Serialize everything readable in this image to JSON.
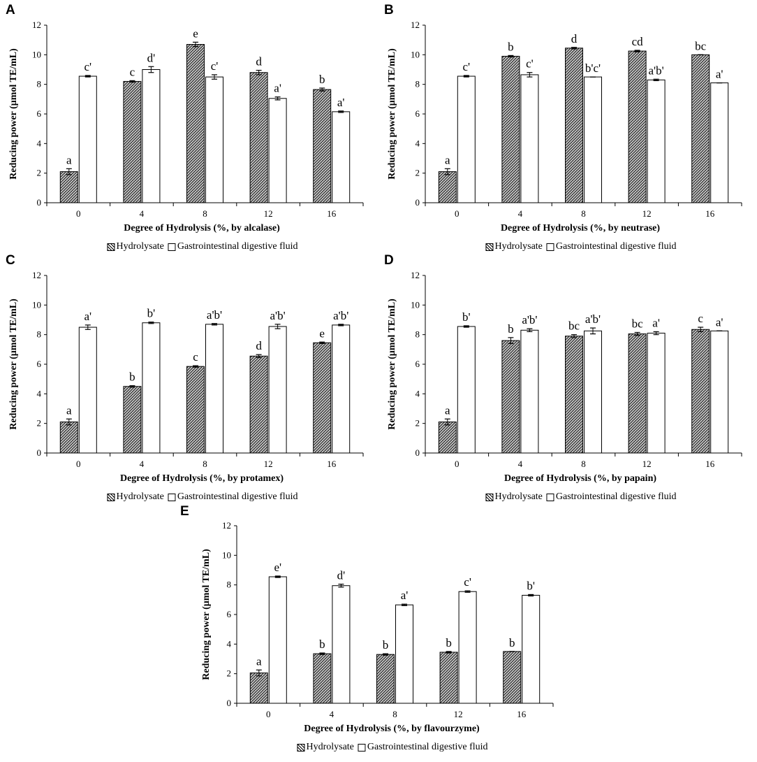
{
  "legend": {
    "hydrolysate": "Hydrolysate",
    "gastro": "Gastrointestinal digestive fluid"
  },
  "ylabel": "Reducing power (μmol TE/mL)",
  "colors": {
    "axis": "#000000",
    "hatch": "#000000",
    "bar_fill": "#ffffff",
    "grid": "#d9d9d9"
  },
  "chart_data": [
    {
      "type": "bar",
      "panel": "A",
      "xlabel": "Degree of Hydrolysis (%, by alcalase)",
      "ylabel": "Reducing power (μmol TE/mL)",
      "categories": [
        "0",
        "4",
        "8",
        "12",
        "16"
      ],
      "yticks": [
        "0",
        "2",
        "4",
        "6",
        "8",
        "10",
        "12"
      ],
      "ylim": [
        0,
        12
      ],
      "series": [
        {
          "name": "Hydrolysate",
          "values": [
            2.1,
            8.2,
            10.7,
            8.8,
            7.65
          ],
          "errors": [
            0.2,
            0.05,
            0.15,
            0.15,
            0.1
          ],
          "labels": [
            "a",
            "c",
            "e",
            "d",
            "b"
          ]
        },
        {
          "name": "Gastrointestinal digestive fluid",
          "values": [
            8.55,
            9.0,
            8.5,
            7.05,
            6.15
          ],
          "errors": [
            0.05,
            0.2,
            0.15,
            0.1,
            0.05
          ],
          "labels": [
            "c'",
            "d'",
            "c'",
            "a'",
            "a'"
          ]
        }
      ]
    },
    {
      "type": "bar",
      "panel": "B",
      "xlabel": "Degree of Hydrolysis (%, by neutrase)",
      "ylabel": "Reducing power (μmol TE/mL)",
      "categories": [
        "0",
        "4",
        "8",
        "12",
        "16"
      ],
      "yticks": [
        "0",
        "2",
        "4",
        "6",
        "8",
        "10",
        "12"
      ],
      "ylim": [
        0,
        12
      ],
      "series": [
        {
          "name": "Hydrolysate",
          "values": [
            2.1,
            9.9,
            10.45,
            10.25,
            10.0
          ],
          "errors": [
            0.2,
            0.05,
            0.05,
            0.05,
            0.0
          ],
          "labels": [
            "a",
            "b",
            "d",
            "cd",
            "bc"
          ]
        },
        {
          "name": "Gastrointestinal digestive fluid",
          "values": [
            8.55,
            8.65,
            8.5,
            8.3,
            8.1
          ],
          "errors": [
            0.05,
            0.15,
            0.0,
            0.05,
            0.0
          ],
          "labels": [
            "c'",
            "c'",
            "b'c'",
            "a'b'",
            "a'"
          ]
        }
      ]
    },
    {
      "type": "bar",
      "panel": "C",
      "xlabel": "Degree of Hydrolysis (%, by protamex)",
      "ylabel": "Reducing power (μmol TE/mL)",
      "categories": [
        "0",
        "4",
        "8",
        "12",
        "16"
      ],
      "yticks": [
        "0",
        "2",
        "4",
        "6",
        "8",
        "10",
        "12"
      ],
      "ylim": [
        0,
        12
      ],
      "series": [
        {
          "name": "Hydrolysate",
          "values": [
            2.1,
            4.5,
            5.85,
            6.55,
            7.45
          ],
          "errors": [
            0.2,
            0.05,
            0.05,
            0.1,
            0.05
          ],
          "labels": [
            "a",
            "b",
            "c",
            "d",
            "e"
          ]
        },
        {
          "name": "Gastrointestinal digestive fluid",
          "values": [
            8.5,
            8.8,
            8.7,
            8.55,
            8.65
          ],
          "errors": [
            0.15,
            0.05,
            0.05,
            0.15,
            0.05
          ],
          "labels": [
            "a'",
            "b'",
            "a'b'",
            "a'b'",
            "a'b'"
          ]
        }
      ]
    },
    {
      "type": "bar",
      "panel": "D",
      "xlabel": "Degree of Hydrolysis (%, by papain)",
      "ylabel": "Reducing power (μmol TE/mL)",
      "categories": [
        "0",
        "4",
        "8",
        "12",
        "16"
      ],
      "yticks": [
        "0",
        "2",
        "4",
        "6",
        "8",
        "10",
        "12"
      ],
      "ylim": [
        0,
        12
      ],
      "series": [
        {
          "name": "Hydrolysate",
          "values": [
            2.1,
            7.6,
            7.9,
            8.05,
            8.35
          ],
          "errors": [
            0.2,
            0.2,
            0.1,
            0.1,
            0.15
          ],
          "labels": [
            "a",
            "b",
            "bc",
            "bc",
            "c"
          ]
        },
        {
          "name": "Gastrointestinal digestive fluid",
          "values": [
            8.55,
            8.3,
            8.25,
            8.1,
            8.25
          ],
          "errors": [
            0.05,
            0.1,
            0.2,
            0.1,
            0.0
          ],
          "labels": [
            "b'",
            "a'b'",
            "a'b'",
            "a'",
            "a'"
          ]
        }
      ]
    },
    {
      "type": "bar",
      "panel": "E",
      "xlabel": "Degree of Hydrolysis (%, by flavourzyme)",
      "ylabel": "Reducing power (μmol TE/mL)",
      "categories": [
        "0",
        "4",
        "8",
        "12",
        "16"
      ],
      "yticks": [
        "0",
        "2",
        "4",
        "6",
        "8",
        "10",
        "12"
      ],
      "ylim": [
        0,
        12
      ],
      "series": [
        {
          "name": "Hydrolysate",
          "values": [
            2.05,
            3.35,
            3.3,
            3.45,
            3.5
          ],
          "errors": [
            0.2,
            0.05,
            0.05,
            0.05,
            0.0
          ],
          "labels": [
            "a",
            "b",
            "b",
            "b",
            "b"
          ]
        },
        {
          "name": "Gastrointestinal digestive fluid",
          "values": [
            8.55,
            7.95,
            6.65,
            7.55,
            7.3
          ],
          "errors": [
            0.05,
            0.1,
            0.05,
            0.05,
            0.05
          ],
          "labels": [
            "e'",
            "d'",
            "a'",
            "c'",
            "b'"
          ]
        }
      ]
    }
  ]
}
